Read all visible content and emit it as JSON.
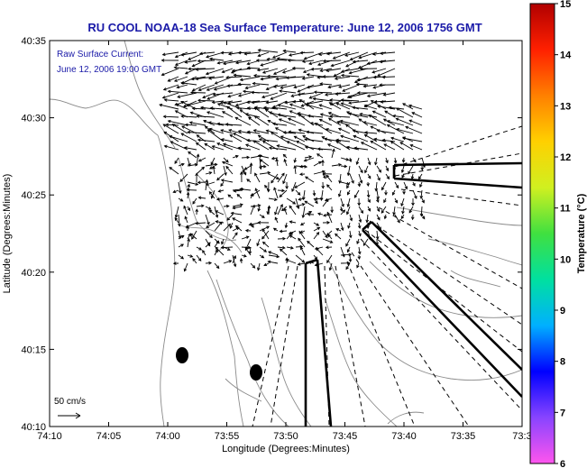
{
  "title": "RU COOL  NOAA-18  Sea Surface Temperature:  June 12, 2006 1756 GMT",
  "legend": {
    "line1": "Raw Surface Current:",
    "line2": "June 12, 2006 19:00 GMT"
  },
  "scale_label": "50 cm/s",
  "xaxis": {
    "label": "Longitude (Degrees:Minutes)",
    "ticks": [
      "74:10",
      "74:05",
      "74:00",
      "73:55",
      "73:50",
      "73:45",
      "73:40",
      "73:35",
      "73:3"
    ]
  },
  "yaxis": {
    "label": "Latitude (Degrees:Minutes)",
    "ticks": [
      "40:35",
      "40:30",
      "40:25",
      "40:20",
      "40:15",
      "40:10"
    ]
  },
  "colorbar": {
    "label": "Temperature (°C)",
    "ticks": [
      "15",
      "14",
      "13",
      "12",
      "11",
      "10",
      "9",
      "8",
      "7",
      "6"
    ],
    "colors": [
      "#ff55ee",
      "#8844ff",
      "#0000ff",
      "#00b0ff",
      "#00e0a0",
      "#40e040",
      "#d0f020",
      "#ffd000",
      "#ff8000",
      "#ff2000",
      "#b00000"
    ]
  },
  "colors": {
    "title": "#1a1aa8",
    "coast": "#8a8a8a",
    "arrows": "#000000"
  }
}
